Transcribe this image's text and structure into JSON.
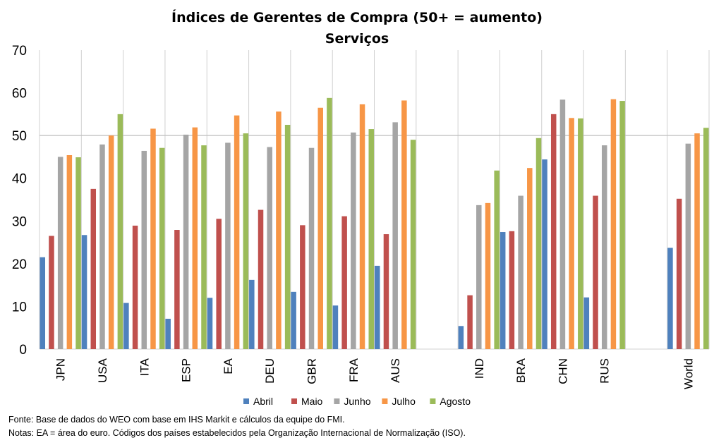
{
  "chart_data": {
    "type": "bar",
    "title": "Índices de Gerentes de Compra (50+ = aumento)",
    "subtitle": "Serviços",
    "categories": [
      "JPN",
      "USA",
      "ITA",
      "ESP",
      "EA",
      "DEU",
      "GBR",
      "FRA",
      "AUS",
      "",
      "IND",
      "BRA",
      "CHN",
      "RUS",
      "",
      "World"
    ],
    "series": [
      {
        "name": "Abril",
        "color": "#4f81bd",
        "values": [
          21.5,
          26.7,
          10.8,
          7.1,
          12.0,
          16.2,
          13.4,
          10.2,
          19.5,
          null,
          5.4,
          27.4,
          44.4,
          12.1,
          null,
          23.7
        ]
      },
      {
        "name": "Maio",
        "color": "#c0504d",
        "values": [
          26.5,
          37.5,
          28.9,
          27.9,
          30.5,
          32.6,
          29.0,
          31.1,
          26.9,
          null,
          12.6,
          27.6,
          55.0,
          35.9,
          null,
          35.2
        ]
      },
      {
        "name": "Junho",
        "color": "#a5a5a5",
        "values": [
          45.0,
          47.9,
          46.4,
          50.2,
          48.3,
          47.3,
          47.1,
          50.7,
          53.1,
          null,
          33.7,
          35.9,
          58.4,
          47.7,
          null,
          48.1
        ]
      },
      {
        "name": "Julho",
        "color": "#f79646",
        "values": [
          45.4,
          50.0,
          51.6,
          51.9,
          54.7,
          55.6,
          56.5,
          57.3,
          58.2,
          null,
          34.2,
          42.4,
          54.1,
          58.5,
          null,
          50.5
        ]
      },
      {
        "name": "Agosto",
        "color": "#9bbb59",
        "values": [
          44.9,
          55.0,
          47.1,
          47.7,
          50.5,
          52.5,
          58.8,
          51.5,
          49.0,
          null,
          41.8,
          49.4,
          54.0,
          58.1,
          null,
          51.8
        ]
      }
    ],
    "ylim": [
      0,
      70
    ],
    "yticks": [
      0,
      10,
      20,
      30,
      40,
      50,
      60,
      70
    ],
    "reference_line": 50,
    "vertical_separators": true,
    "legend_position": "bottom"
  },
  "notes": {
    "source": "Fonte: Base de dados do WEO com base em IHS Markit e cálculos da equipe do FMI.",
    "notes": "Notas: EA = área do euro. Códigos dos países estabelecidos pela Organização Internacional de Normalização (ISO)."
  }
}
